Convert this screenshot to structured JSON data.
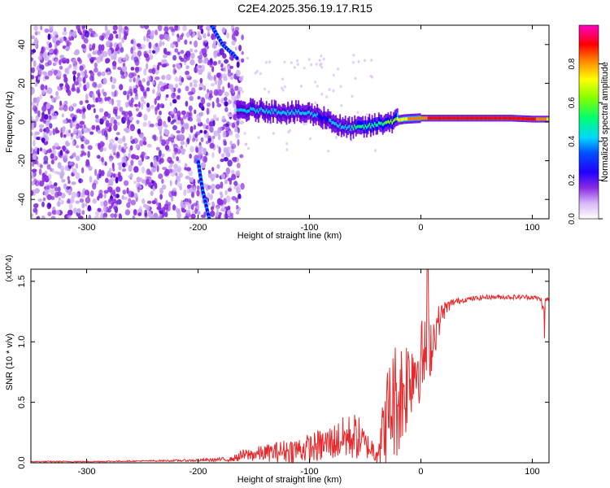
{
  "title": "C2E4.2025.356.19.17.R15",
  "chart_data": [
    {
      "type": "heatmap",
      "title": "C2E4.2025.356.19.17.R15",
      "xlabel": "Height of straight line (km)",
      "ylabel": "Frequency (Hz)",
      "xlim": [
        -350,
        115
      ],
      "ylim": [
        -50,
        50
      ],
      "xticks": [
        -300,
        -200,
        -100,
        0,
        100
      ],
      "yticks": [
        -40,
        -20,
        0,
        20,
        40
      ],
      "colorbar": {
        "label": "Normalized spectral amplitude",
        "range": [
          0,
          1
        ],
        "ticks": [
          0.0,
          0.2,
          0.4,
          0.6,
          0.8
        ],
        "tick_labels": [
          "0.0",
          "0.2",
          "0.4",
          "0.6",
          "0.8"
        ],
        "colors": [
          "#ffffff",
          "#c8a8f0",
          "#8a2be2",
          "#4b00d0",
          "#0000ff",
          "#00c8ff",
          "#00ff80",
          "#80ff00",
          "#ffff00",
          "#ff8000",
          "#ff0000",
          "#ff00c0"
        ]
      },
      "noise_region_x": [
        -350,
        -160
      ],
      "ridge": {
        "x": [
          -165,
          -140,
          -120,
          -100,
          -85,
          -70,
          -55,
          -45,
          -30,
          -15,
          0,
          20,
          50,
          80,
          100,
          115
        ],
        "freq": [
          6,
          6,
          5,
          4.5,
          2,
          -3,
          -3,
          -2,
          0,
          1.5,
          2,
          2,
          2,
          2,
          1.5,
          1.5
        ],
        "amplitude": [
          0.45,
          0.45,
          0.45,
          0.42,
          0.4,
          0.45,
          0.55,
          0.55,
          0.6,
          0.75,
          0.85,
          0.9,
          0.95,
          0.92,
          0.9,
          0.75
        ]
      },
      "features": [
        {
          "name": "high-frequency arc",
          "x": [
            -188,
            -178,
            -165
          ],
          "freq": [
            50,
            40,
            33
          ]
        },
        {
          "name": "low-frequency arc",
          "x": [
            -200,
            -196,
            -190
          ],
          "freq": [
            -20,
            -35,
            -50
          ]
        }
      ]
    },
    {
      "type": "line",
      "xlabel": "Height of straight line (km)",
      "ylabel": "SNR (10 * v/v)",
      "y_multiplier": "(x10^4)",
      "xlim": [
        -350,
        115
      ],
      "ylim": [
        0,
        1.6
      ],
      "xticks": [
        -300,
        -200,
        -100,
        0,
        100
      ],
      "yticks": [
        0.0,
        0.5,
        1.0,
        1.5
      ],
      "ytick_labels": [
        "0.0",
        "0.5",
        "1.0",
        "1.5"
      ],
      "series": [
        {
          "name": "SNR",
          "color": "#e8282a",
          "x": [
            -350,
            -300,
            -250,
            -200,
            -170,
            -160,
            -140,
            -120,
            -100,
            -90,
            -80,
            -70,
            -60,
            -55,
            -50,
            -45,
            -40,
            -35,
            -30,
            -25,
            -20,
            -15,
            -10,
            -5,
            0,
            5,
            10,
            15,
            20,
            25,
            30,
            40,
            60,
            80,
            100,
            108,
            110,
            112,
            115
          ],
          "mean": [
            0.01,
            0.01,
            0.015,
            0.02,
            0.03,
            0.06,
            0.08,
            0.1,
            0.12,
            0.14,
            0.17,
            0.2,
            0.22,
            0.2,
            0.15,
            0.12,
            0.1,
            0.2,
            0.4,
            0.5,
            0.55,
            0.6,
            0.75,
            0.8,
            0.85,
            0.9,
            1.0,
            1.15,
            1.25,
            1.3,
            1.33,
            1.35,
            1.37,
            1.37,
            1.37,
            1.35,
            1.25,
            1.35,
            1.35
          ],
          "spread": [
            0.005,
            0.005,
            0.005,
            0.01,
            0.02,
            0.05,
            0.07,
            0.1,
            0.12,
            0.14,
            0.15,
            0.18,
            0.2,
            0.18,
            0.12,
            0.1,
            0.12,
            0.25,
            0.4,
            0.5,
            0.5,
            0.45,
            0.4,
            0.35,
            0.35,
            0.3,
            0.25,
            0.15,
            0.08,
            0.05,
            0.03,
            0.02,
            0.02,
            0.02,
            0.02,
            0.02,
            0.05,
            0.02,
            0.02
          ]
        }
      ]
    }
  ]
}
